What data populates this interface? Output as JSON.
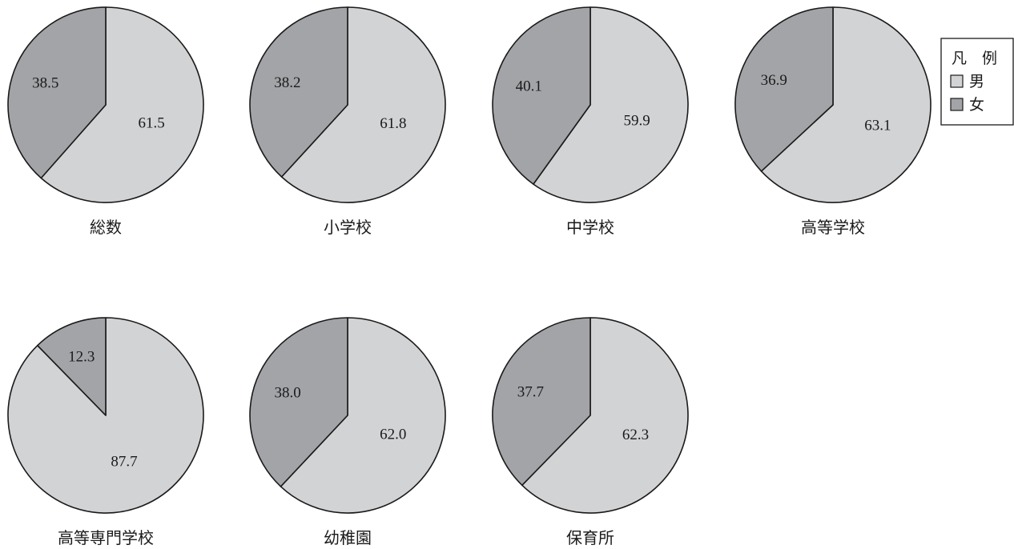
{
  "chart_data": {
    "type": "pie",
    "unit": "",
    "legend": {
      "title": "凡　例",
      "placement": "top-right",
      "entries": [
        {
          "name": "男",
          "color": "#d2d3d5"
        },
        {
          "name": "女",
          "color": "#a3a4a7"
        }
      ]
    },
    "pies": [
      {
        "id": "total",
        "title": "総数",
        "male": 61.5,
        "female": 38.5,
        "male_label": "61.5",
        "female_label": "38.5"
      },
      {
        "id": "elementary",
        "title": "小学校",
        "male": 61.8,
        "female": 38.2,
        "male_label": "61.8",
        "female_label": "38.2"
      },
      {
        "id": "junior",
        "title": "中学校",
        "male": 59.9,
        "female": 40.1,
        "male_label": "59.9",
        "female_label": "40.1"
      },
      {
        "id": "high",
        "title": "高等学校",
        "male": 63.1,
        "female": 36.9,
        "male_label": "63.1",
        "female_label": "36.9"
      },
      {
        "id": "technical",
        "title": "高等専門学校",
        "male": 87.7,
        "female": 12.3,
        "male_label": "87.7",
        "female_label": "12.3"
      },
      {
        "id": "kindergarten",
        "title": "幼稚園",
        "male": 62.0,
        "female": 38.0,
        "male_label": "62.0",
        "female_label": "38.0"
      },
      {
        "id": "nursery",
        "title": "保育所",
        "male": 62.3,
        "female": 37.7,
        "male_label": "62.3",
        "female_label": "37.7"
      }
    ]
  }
}
